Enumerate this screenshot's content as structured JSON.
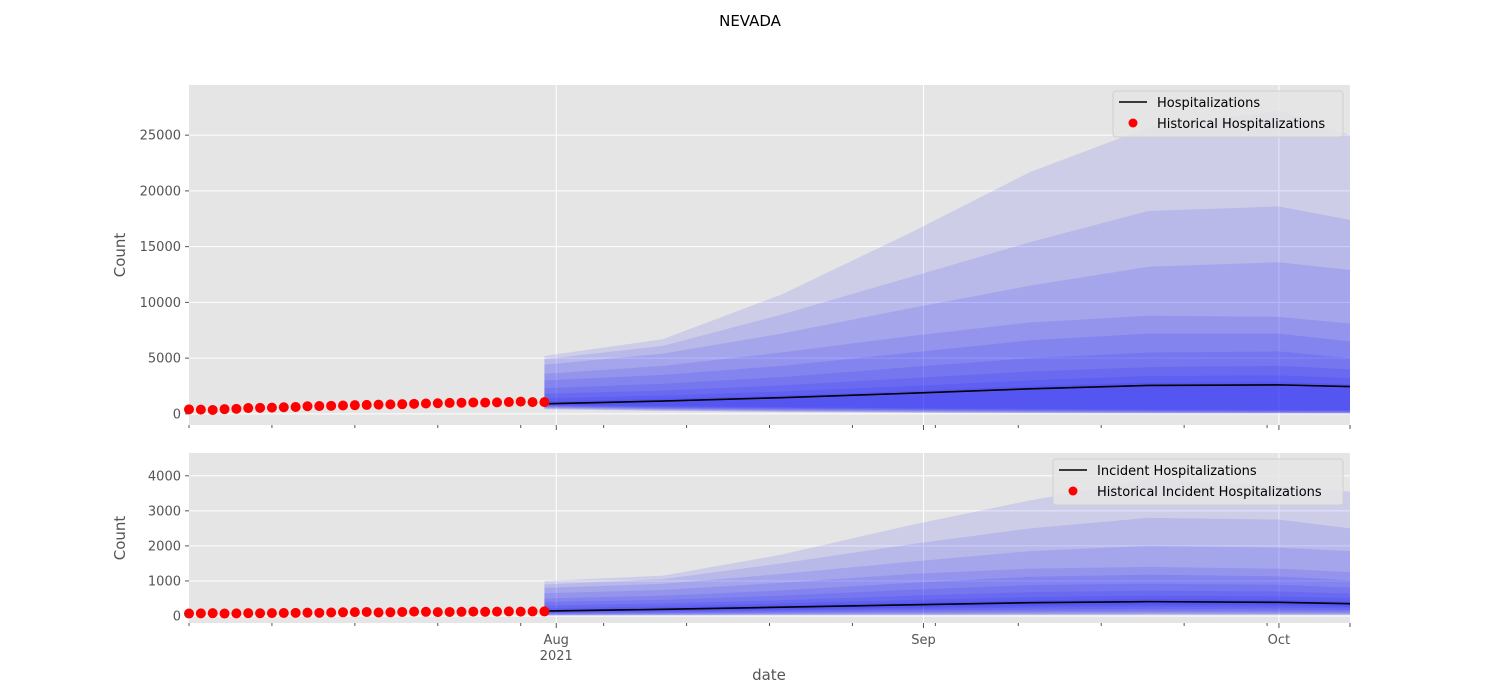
{
  "figure": {
    "title": "NEVADA"
  },
  "colors": {
    "panel_bg": "#e5e5e5",
    "grid": "#ffffff",
    "band": "#0000ff",
    "median": "#000000",
    "historical": "#ff0000",
    "tick_text": "#555555"
  },
  "chart_data": [
    {
      "type": "line",
      "panel": "top",
      "ylabel": "Count",
      "xlabel": "",
      "ylim": [
        -1000,
        29500
      ],
      "yticks": [
        0,
        5000,
        10000,
        15000,
        20000,
        25000
      ],
      "legend": {
        "placement": "top-right",
        "entries": [
          "Hospitalizations",
          "Historical Hospitalizations"
        ]
      },
      "historical": {
        "name": "Historical Hospitalizations",
        "start": "2021-07-01",
        "values": [
          400,
          380,
          350,
          420,
          450,
          520,
          540,
          560,
          590,
          620,
          680,
          700,
          720,
          750,
          780,
          800,
          830,
          850,
          870,
          900,
          930,
          950,
          980,
          1000,
          1020,
          1010,
          1030,
          1060,
          1100,
          1050,
          1050
        ]
      },
      "forecast": {
        "name": "Hospitalizations",
        "x": [
          "2021-07-31",
          "2021-08-10",
          "2021-08-20",
          "2021-08-31",
          "2021-09-10",
          "2021-09-20",
          "2021-10-01",
          "2021-10-07"
        ],
        "median": [
          900,
          1150,
          1450,
          1850,
          2250,
          2550,
          2600,
          2450
        ],
        "bands": [
          {
            "lower": [
              800,
              700,
              600,
              500,
              450,
              400,
              350,
              350
            ],
            "upper": [
              1100,
              1350,
              1650,
              2050,
              2500,
              2800,
              2850,
              2650
            ]
          },
          {
            "lower": [
              750,
              620,
              520,
              440,
              380,
              320,
              280,
              260
            ],
            "upper": [
              1400,
              1650,
              2000,
              2500,
              3000,
              3400,
              3450,
              3200
            ]
          },
          {
            "lower": [
              700,
              560,
              460,
              380,
              320,
              260,
              220,
              200
            ],
            "upper": [
              1800,
              2100,
              2550,
              3200,
              3800,
              4200,
              4300,
              4000
            ]
          },
          {
            "lower": [
              650,
              500,
              400,
              320,
              260,
              210,
              170,
              150
            ],
            "upper": [
              2300,
              2700,
              3300,
              4200,
              5000,
              5500,
              5600,
              5000
            ]
          },
          {
            "lower": [
              600,
              450,
              340,
              260,
              200,
              160,
              130,
              110
            ],
            "upper": [
              3000,
              3500,
              4300,
              5500,
              6600,
              7200,
              7200,
              6500
            ]
          },
          {
            "lower": [
              550,
              400,
              290,
              210,
              150,
              120,
              90,
              80
            ],
            "upper": [
              3600,
              4300,
              5500,
              7000,
              8200,
              8800,
              8700,
              8100
            ]
          },
          {
            "lower": [
              500,
              350,
              240,
              160,
              110,
              80,
              60,
              50
            ],
            "upper": [
              4400,
              5400,
              7200,
              9500,
              11500,
              13200,
              13600,
              12900
            ]
          },
          {
            "lower": [
              450,
              300,
              190,
              120,
              80,
              50,
              40,
              30
            ],
            "upper": [
              4900,
              6100,
              8900,
              12300,
              15400,
              18200,
              18600,
              17400
            ]
          },
          {
            "lower": [
              400,
              250,
              150,
              90,
              50,
              30,
              20,
              20
            ],
            "upper": [
              5200,
              6700,
              10700,
              16300,
              21700,
              25700,
              27200,
              25000
            ]
          }
        ]
      }
    },
    {
      "type": "line",
      "panel": "bottom",
      "ylabel": "Count",
      "xlabel": "date",
      "ylim": [
        -200,
        4650
      ],
      "yticks": [
        0,
        1000,
        2000,
        3000,
        4000
      ],
      "xticks": [
        {
          "date": "2021-08-01",
          "label": "Aug",
          "sublabel": "2021"
        },
        {
          "date": "2021-09-01",
          "label": "Sep",
          "sublabel": ""
        },
        {
          "date": "2021-10-01",
          "label": "Oct",
          "sublabel": ""
        }
      ],
      "legend": {
        "placement": "top-right",
        "entries": [
          "Incident Hospitalizations",
          "Historical Incident Hospitalizations"
        ]
      },
      "historical": {
        "name": "Historical Incident Hospitalizations",
        "start": "2021-07-01",
        "values": [
          70,
          75,
          80,
          70,
          75,
          80,
          78,
          82,
          85,
          90,
          95,
          90,
          100,
          105,
          110,
          115,
          100,
          105,
          115,
          125,
          120,
          110,
          115,
          120,
          125,
          120,
          125,
          130,
          125,
          130,
          130
        ]
      },
      "forecast": {
        "name": "Incident Hospitalizations",
        "x": [
          "2021-07-31",
          "2021-08-10",
          "2021-08-20",
          "2021-08-31",
          "2021-09-10",
          "2021-09-20",
          "2021-10-01",
          "2021-10-07"
        ],
        "median": [
          140,
          190,
          250,
          320,
          380,
          410,
          390,
          350
        ],
        "bands": [
          {
            "lower": [
              120,
              150,
              190,
              240,
              290,
              320,
              300,
              270
            ],
            "upper": [
              170,
              230,
              300,
              380,
              450,
              480,
              460,
              420
            ]
          },
          {
            "lower": [
              100,
              130,
              160,
              200,
              240,
              260,
              240,
              220
            ],
            "upper": [
              220,
              280,
              360,
              460,
              540,
              580,
              560,
              510
            ]
          },
          {
            "lower": [
              80,
              100,
              130,
              160,
              190,
              200,
              190,
              170
            ],
            "upper": [
              300,
              360,
              450,
              580,
              680,
              720,
              700,
              640
            ]
          },
          {
            "lower": [
              60,
              80,
              100,
              120,
              140,
              150,
              140,
              130
            ],
            "upper": [
              400,
              460,
              580,
              750,
              880,
              920,
              890,
              810
            ]
          },
          {
            "lower": [
              45,
              60,
              75,
              90,
              100,
              110,
              100,
              95
            ],
            "upper": [
              500,
              580,
              730,
              950,
              1120,
              1180,
              1130,
              1020
            ]
          },
          {
            "lower": [
              30,
              40,
              55,
              65,
              75,
              80,
              75,
              70
            ],
            "upper": [
              650,
              740,
              950,
              1200,
              1350,
              1400,
              1350,
              1250
            ]
          },
          {
            "lower": [
              20,
              30,
              40,
              45,
              50,
              55,
              50,
              50
            ],
            "upper": [
              800,
              920,
              1200,
              1550,
              1850,
              2000,
              1950,
              1850
            ]
          },
          {
            "lower": [
              15,
              20,
              25,
              30,
              35,
              40,
              35,
              35
            ],
            "upper": [
              900,
              1050,
              1500,
              2050,
              2500,
              2800,
              2750,
              2500
            ]
          },
          {
            "lower": [
              10,
              15,
              20,
              20,
              25,
              25,
              25,
              25
            ],
            "upper": [
              1000,
              1150,
              1750,
              2600,
              3300,
              3900,
              3700,
              3550
            ]
          }
        ]
      }
    }
  ]
}
